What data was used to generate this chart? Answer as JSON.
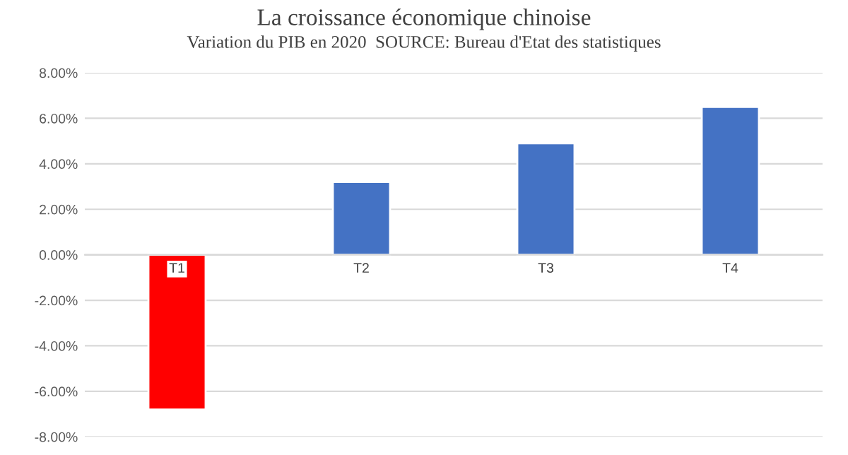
{
  "chart_data": {
    "type": "bar",
    "title": "La croissance économique chinoise",
    "subtitle": "Variation du PIB en 2020  SOURCE: Bureau d'Etat des statistiques",
    "categories": [
      "T1",
      "T2",
      "T3",
      "T4"
    ],
    "values": [
      -6.8,
      3.2,
      4.9,
      6.5
    ],
    "colors": [
      "#ff0000",
      "#4472c4",
      "#4472c4",
      "#4472c4"
    ],
    "ylim": [
      -8,
      8
    ],
    "yticks": [
      {
        "value": -8,
        "label": "-8.00%"
      },
      {
        "value": -6,
        "label": "-6.00%"
      },
      {
        "value": -4,
        "label": "-4.00%"
      },
      {
        "value": -2,
        "label": "-2.00%"
      },
      {
        "value": 0,
        "label": "0.00%"
      },
      {
        "value": 2,
        "label": "2.00%"
      },
      {
        "value": 4,
        "label": "4.00%"
      },
      {
        "value": 6,
        "label": "6.00%"
      },
      {
        "value": 8,
        "label": "8.00%"
      }
    ],
    "grid": "y"
  }
}
